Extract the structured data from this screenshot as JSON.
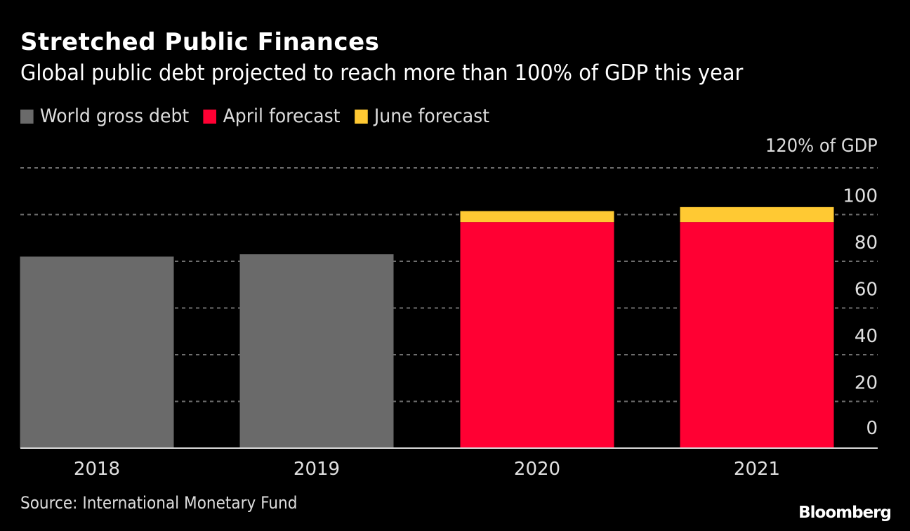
{
  "chart_data": {
    "type": "bar",
    "stacked": true,
    "title": "Stretched Public Finances",
    "subtitle": "Global public debt projected to reach more than 100% of GDP this year",
    "categories": [
      "2018",
      "2019",
      "2020",
      "2021"
    ],
    "series": [
      {
        "name": "World gross debt",
        "color": "#6a6a6a",
        "values": [
          82.0,
          83.0,
          null,
          null
        ]
      },
      {
        "name": "April forecast",
        "color": "#ff0033",
        "values": [
          null,
          null,
          96.8,
          96.8
        ]
      },
      {
        "name": "June forecast",
        "color": "#ffc933",
        "values": [
          null,
          null,
          4.7,
          6.4
        ]
      }
    ],
    "totals": [
      82.0,
      83.0,
      101.5,
      103.2
    ],
    "ylim": [
      0,
      120
    ],
    "yticks": [
      0,
      20,
      40,
      60,
      80,
      100
    ],
    "ytick_labels": [
      "0",
      "20",
      "40",
      "60",
      "80",
      "100"
    ],
    "y_unit_label": "120% of GDP",
    "xlabel": "",
    "ylabel": "",
    "grid": true,
    "legend_position": "top-left",
    "yaxis_position": "right"
  },
  "footer": {
    "source": "Source: International Monetary Fund",
    "brand": "Bloomberg"
  }
}
